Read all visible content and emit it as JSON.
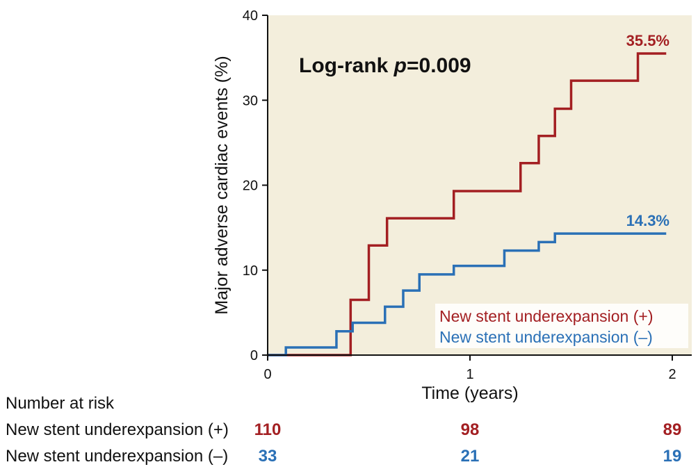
{
  "chart_data": {
    "type": "line",
    "subtype": "kaplan-meier-step",
    "ylabel": "Major adverse cardiac events (%)",
    "xlabel": "Time (years)",
    "xlim": [
      0,
      2.1
    ],
    "ylim": [
      0,
      40
    ],
    "xticks": [
      0,
      1,
      2
    ],
    "yticks": [
      0,
      10,
      20,
      30,
      40
    ],
    "grid": false,
    "plot_background": "#f3eedc",
    "annotation": {
      "prefix": "Log-rank ",
      "italic": "p",
      "suffix": "=0.009"
    },
    "legend": {
      "position": "bottom-right",
      "entries": [
        "New stent underexpansion (+)",
        "New stent underexpansion (–)"
      ]
    },
    "series": [
      {
        "name": "New stent underexpansion (+)",
        "color": "#a31f22",
        "end_label": "35.5%",
        "steps": [
          [
            0,
            0
          ],
          [
            0.41,
            6.5
          ],
          [
            0.5,
            12.9
          ],
          [
            0.59,
            16.1
          ],
          [
            0.92,
            19.3
          ],
          [
            1.25,
            22.6
          ],
          [
            1.34,
            25.8
          ],
          [
            1.42,
            29.0
          ],
          [
            1.5,
            32.3
          ],
          [
            1.83,
            35.5
          ],
          [
            1.97,
            35.5
          ]
        ]
      },
      {
        "name": "New stent underexpansion (–)",
        "color": "#2a70b6",
        "end_label": "14.3%",
        "steps": [
          [
            0,
            0
          ],
          [
            0.09,
            0.9
          ],
          [
            0.34,
            2.8
          ],
          [
            0.42,
            3.8
          ],
          [
            0.58,
            5.7
          ],
          [
            0.67,
            7.6
          ],
          [
            0.75,
            9.5
          ],
          [
            0.92,
            10.5
          ],
          [
            1.17,
            12.3
          ],
          [
            1.34,
            13.3
          ],
          [
            1.42,
            14.3
          ],
          [
            1.97,
            14.3
          ]
        ]
      }
    ],
    "risk_table": {
      "title": "Number at risk",
      "timepoints": [
        0,
        1,
        2
      ],
      "rows": [
        {
          "label": "New stent underexpansion (+)",
          "color": "#a31f22",
          "values": [
            "110",
            "98",
            "89"
          ]
        },
        {
          "label": "New stent underexpansion (–)",
          "color": "#2a70b6",
          "values": [
            "33",
            "21",
            "19"
          ]
        }
      ]
    }
  }
}
